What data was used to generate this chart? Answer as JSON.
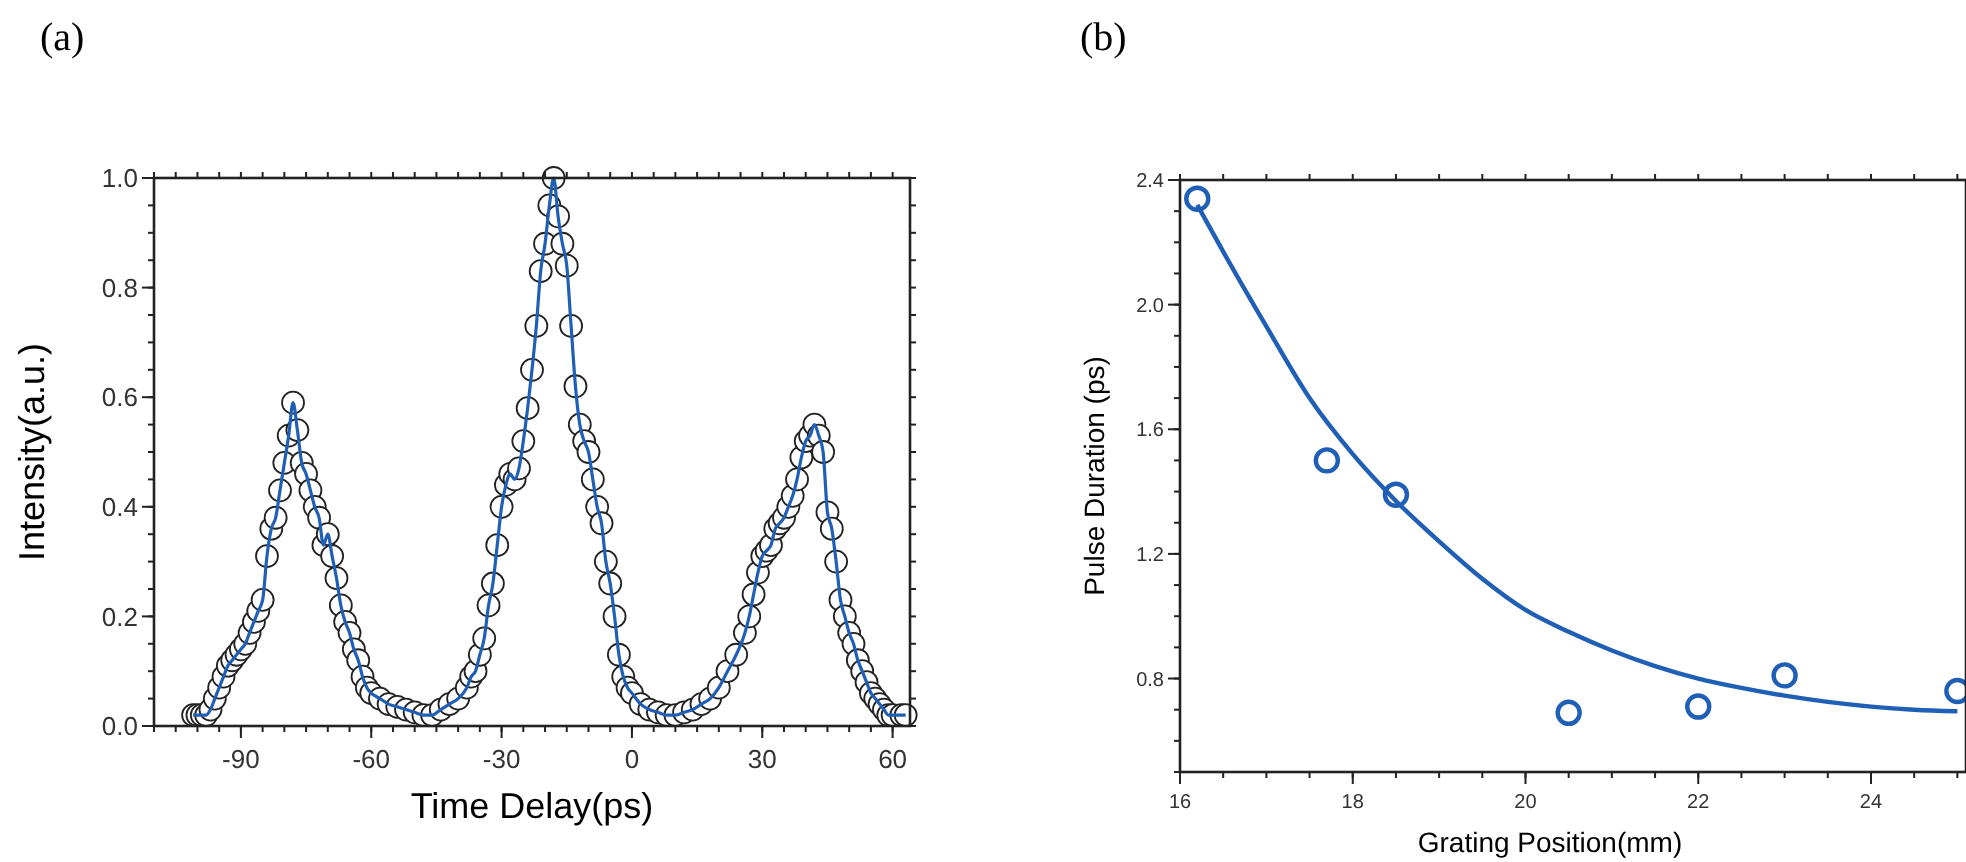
{
  "chart_data": [
    {
      "type": "line",
      "title": "(a)",
      "xlabel": "Time Delay(ps)",
      "ylabel": "Intensity(a.u.)",
      "xlim": [
        -110,
        64
      ],
      "ylim": [
        0,
        1.0
      ],
      "xticks": [
        -90,
        -60,
        -30,
        0,
        30,
        60
      ],
      "yticks": [
        {
          "value": 0,
          "label": "0.0"
        },
        0.2,
        0.4,
        0.6,
        0.8,
        {
          "value": 1,
          "label": "1.0"
        }
      ],
      "grid": false,
      "marker": "circle",
      "line_style": "solid",
      "series": [
        {
          "color": "#1f5fb5",
          "x": [
            -101,
            -100,
            -99,
            -98,
            -97,
            -96,
            -95,
            -94,
            -93,
            -92,
            -91,
            -90,
            -89,
            -88,
            -87,
            -86,
            -85,
            -84,
            -83,
            -82,
            -81,
            -80,
            -79,
            -78,
            -77,
            -76,
            -75,
            -74,
            -73,
            -72,
            -71,
            -70,
            -69,
            -68,
            -67,
            -66,
            -65,
            -64,
            -63,
            -62,
            -61,
            -60,
            -58,
            -56,
            -54,
            -52,
            -50,
            -48,
            -46,
            -44,
            -42,
            -40,
            -38,
            -37,
            -36,
            -35,
            -34,
            -33,
            -32,
            -31,
            -30,
            -29,
            -28,
            -27,
            -26,
            -25,
            -24,
            -23,
            -22,
            -21,
            -20,
            -19,
            -18,
            -17,
            -16,
            -15,
            -14,
            -13,
            -12,
            -11,
            -10,
            -9,
            -8,
            -7,
            -6,
            -5,
            -4,
            -3,
            -2,
            -1,
            0,
            2,
            4,
            6,
            8,
            10,
            12,
            14,
            16,
            18,
            20,
            22,
            24,
            26,
            27,
            28,
            29,
            30,
            31,
            32,
            33,
            34,
            35,
            36,
            37,
            38,
            39,
            40,
            41,
            42,
            43,
            44,
            45,
            46,
            47,
            48,
            49,
            50,
            51,
            52,
            53,
            54,
            55,
            56,
            57,
            58,
            59,
            60,
            62,
            63
          ],
          "values": [
            0.02,
            0.02,
            0.02,
            0.02,
            0.03,
            0.05,
            0.07,
            0.09,
            0.11,
            0.12,
            0.13,
            0.14,
            0.15,
            0.17,
            0.19,
            0.21,
            0.23,
            0.31,
            0.36,
            0.38,
            0.43,
            0.48,
            0.53,
            0.59,
            0.54,
            0.48,
            0.46,
            0.43,
            0.4,
            0.38,
            0.33,
            0.35,
            0.31,
            0.27,
            0.22,
            0.19,
            0.17,
            0.14,
            0.12,
            0.09,
            0.07,
            0.06,
            0.05,
            0.04,
            0.035,
            0.03,
            0.025,
            0.02,
            0.02,
            0.03,
            0.04,
            0.05,
            0.07,
            0.09,
            0.1,
            0.13,
            0.16,
            0.22,
            0.26,
            0.33,
            0.4,
            0.44,
            0.46,
            0.45,
            0.47,
            0.52,
            0.58,
            0.65,
            0.73,
            0.83,
            0.88,
            0.95,
            1.0,
            0.93,
            0.88,
            0.84,
            0.73,
            0.62,
            0.55,
            0.52,
            0.5,
            0.45,
            0.4,
            0.37,
            0.3,
            0.26,
            0.2,
            0.13,
            0.09,
            0.07,
            0.06,
            0.04,
            0.03,
            0.025,
            0.02,
            0.02,
            0.025,
            0.03,
            0.04,
            0.05,
            0.07,
            0.1,
            0.13,
            0.17,
            0.2,
            0.24,
            0.28,
            0.31,
            0.32,
            0.33,
            0.36,
            0.37,
            0.38,
            0.4,
            0.42,
            0.45,
            0.49,
            0.52,
            0.53,
            0.55,
            0.53,
            0.5,
            0.39,
            0.36,
            0.3,
            0.23,
            0.2,
            0.17,
            0.15,
            0.12,
            0.1,
            0.08,
            0.06,
            0.05,
            0.04,
            0.03,
            0.02,
            0.02,
            0.02,
            0.02
          ]
        }
      ]
    },
    {
      "type": "scatter",
      "title": "(b)",
      "xlabel": "Grating Position(mm)",
      "ylabel": "Pulse Duration (ps)",
      "xlim": [
        16,
        25.1
      ],
      "ylim": [
        0.5,
        2.4
      ],
      "xticks": [
        16,
        18,
        20,
        22,
        24
      ],
      "yticks": [
        0.8,
        1.2,
        1.6,
        {
          "value": 2,
          "label": "2.0"
        },
        2.4
      ],
      "grid": false,
      "series": [
        {
          "marker": "circle",
          "color": "#1f5fb5",
          "x": [
            16.2,
            17.7,
            18.5,
            20.5,
            22.0,
            23.0,
            25.0
          ],
          "values": [
            2.34,
            1.5,
            1.39,
            0.69,
            0.71,
            0.81,
            0.76
          ]
        },
        {
          "type": "line",
          "marker": "none",
          "color": "#1f5fb5",
          "x": [
            16.2,
            16.5,
            17,
            17.5,
            18,
            18.5,
            19,
            19.5,
            20,
            20.5,
            21,
            21.5,
            22,
            22.5,
            23,
            23.5,
            24,
            24.5,
            25
          ],
          "values": [
            2.32,
            2.17,
            1.93,
            1.7,
            1.52,
            1.37,
            1.24,
            1.12,
            1.02,
            0.95,
            0.89,
            0.84,
            0.8,
            0.77,
            0.745,
            0.725,
            0.71,
            0.7,
            0.695
          ]
        }
      ]
    }
  ]
}
